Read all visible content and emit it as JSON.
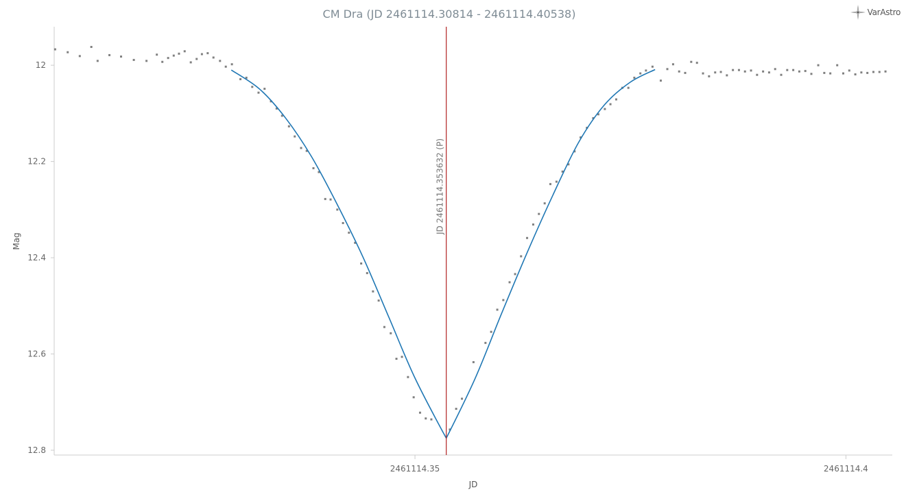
{
  "logo": {
    "text": "VarAstro",
    "icon": "compass-star-icon"
  },
  "chart_data": {
    "type": "scatter",
    "title": "CM Dra (JD 2461114.30814 - 2461114.40538)",
    "xlabel": "JD",
    "ylabel": "Mag",
    "xlim": [
      2461114.30814,
      2461114.40538
    ],
    "ylim": [
      11.92,
      12.81
    ],
    "y_inverted": true,
    "x_ticks": [
      {
        "value": 2461114.35,
        "label": "2461114.35"
      },
      {
        "value": 2461114.4,
        "label": "2461114.4"
      }
    ],
    "y_ticks": [
      {
        "value": 12.0,
        "label": "12"
      },
      {
        "value": 12.2,
        "label": "12.2"
      },
      {
        "value": 12.4,
        "label": "12.4"
      },
      {
        "value": 12.6,
        "label": "12.6"
      },
      {
        "value": 12.8,
        "label": "12.8"
      }
    ],
    "grid": false,
    "marker": {
      "x": 2461114.353632,
      "label": "JD 2461114.353632 (P)",
      "color": "#b22222"
    },
    "colors": {
      "points": "#808080",
      "fit": "#1f77b4",
      "axis": "#cccccc"
    },
    "series": [
      {
        "type": "scatter",
        "points": [
          [
            2461114.30825,
            11.967
          ],
          [
            2461114.30971,
            11.973
          ],
          [
            2461114.31111,
            11.981
          ],
          [
            2461114.31245,
            11.962
          ],
          [
            2461114.31318,
            11.991
          ],
          [
            2461114.31455,
            11.979
          ],
          [
            2461114.3159,
            11.982
          ],
          [
            2461114.31738,
            11.989
          ],
          [
            2461114.31885,
            11.991
          ],
          [
            2461114.32005,
            11.978
          ],
          [
            2461114.32069,
            11.993
          ],
          [
            2461114.32136,
            11.985
          ],
          [
            2461114.32201,
            11.98
          ],
          [
            2461114.32262,
            11.976
          ],
          [
            2461114.32328,
            11.971
          ],
          [
            2461114.32399,
            11.994
          ],
          [
            2461114.32467,
            11.987
          ],
          [
            2461114.32528,
            11.977
          ],
          [
            2461114.32595,
            11.975
          ],
          [
            2461114.32662,
            11.984
          ],
          [
            2461114.32738,
            11.991
          ],
          [
            2461114.32805,
            12.003
          ],
          [
            2461114.32876,
            11.998
          ],
          [
            2461114.32975,
            12.029
          ],
          [
            2461114.33044,
            12.026
          ],
          [
            2461114.33112,
            12.045
          ],
          [
            2461114.33185,
            12.057
          ],
          [
            2461114.33255,
            12.049
          ],
          [
            2461114.33329,
            12.075
          ],
          [
            2461114.33395,
            12.09
          ],
          [
            2461114.33458,
            12.105
          ],
          [
            2461114.33538,
            12.127
          ],
          [
            2461114.33605,
            12.148
          ],
          [
            2461114.33679,
            12.172
          ],
          [
            2461114.33744,
            12.178
          ],
          [
            2461114.33822,
            12.214
          ],
          [
            2461114.33885,
            12.222
          ],
          [
            2461114.33959,
            12.278
          ],
          [
            2461114.34021,
            12.279
          ],
          [
            2461114.34099,
            12.3
          ],
          [
            2461114.34165,
            12.328
          ],
          [
            2461114.34234,
            12.348
          ],
          [
            2461114.34305,
            12.369
          ],
          [
            2461114.34376,
            12.412
          ],
          [
            2461114.34445,
            12.432
          ],
          [
            2461114.34513,
            12.47
          ],
          [
            2461114.34579,
            12.489
          ],
          [
            2461114.34645,
            12.544
          ],
          [
            2461114.34719,
            12.557
          ],
          [
            2461114.34785,
            12.61
          ],
          [
            2461114.34849,
            12.606
          ],
          [
            2461114.34919,
            12.648
          ],
          [
            2461114.34985,
            12.69
          ],
          [
            2461114.35059,
            12.722
          ],
          [
            2461114.35125,
            12.734
          ],
          [
            2461114.3519,
            12.736
          ],
          [
            2461114.35405,
            12.757
          ],
          [
            2461114.35478,
            12.714
          ],
          [
            2461114.35545,
            12.693
          ],
          [
            2461114.35679,
            12.617
          ],
          [
            2461114.35818,
            12.577
          ],
          [
            2461114.35884,
            12.554
          ],
          [
            2461114.35955,
            12.508
          ],
          [
            2461114.36025,
            12.488
          ],
          [
            2461114.36098,
            12.451
          ],
          [
            2461114.36162,
            12.434
          ],
          [
            2461114.36231,
            12.397
          ],
          [
            2461114.36301,
            12.359
          ],
          [
            2461114.36372,
            12.331
          ],
          [
            2461114.36438,
            12.309
          ],
          [
            2461114.36505,
            12.287
          ],
          [
            2461114.36571,
            12.247
          ],
          [
            2461114.36642,
            12.242
          ],
          [
            2461114.36712,
            12.221
          ],
          [
            2461114.36781,
            12.206
          ],
          [
            2461114.36852,
            12.179
          ],
          [
            2461114.36922,
            12.15
          ],
          [
            2461114.36995,
            12.13
          ],
          [
            2461114.37068,
            12.11
          ],
          [
            2461114.37128,
            12.102
          ],
          [
            2461114.37203,
            12.091
          ],
          [
            2461114.37268,
            12.081
          ],
          [
            2461114.37335,
            12.071
          ],
          [
            2461114.37406,
            12.047
          ],
          [
            2461114.37476,
            12.047
          ],
          [
            2461114.37545,
            12.026
          ],
          [
            2461114.37615,
            12.017
          ],
          [
            2461114.3768,
            12.011
          ],
          [
            2461114.37756,
            12.003
          ],
          [
            2461114.37852,
            12.032
          ],
          [
            2461114.37928,
            12.008
          ],
          [
            2461114.37995,
            11.998
          ],
          [
            2461114.38065,
            12.013
          ],
          [
            2461114.38135,
            12.016
          ],
          [
            2461114.38205,
            11.993
          ],
          [
            2461114.38272,
            11.995
          ],
          [
            2461114.38342,
            12.017
          ],
          [
            2461114.38412,
            12.023
          ],
          [
            2461114.38483,
            12.015
          ],
          [
            2461114.38549,
            12.014
          ],
          [
            2461114.38619,
            12.021
          ],
          [
            2461114.38689,
            12.01
          ],
          [
            2461114.38759,
            12.01
          ],
          [
            2461114.38829,
            12.013
          ],
          [
            2461114.38899,
            12.011
          ],
          [
            2461114.38969,
            12.02
          ],
          [
            2461114.39039,
            12.013
          ],
          [
            2461114.39109,
            12.015
          ],
          [
            2461114.39179,
            12.008
          ],
          [
            2461114.39249,
            12.02
          ],
          [
            2461114.39319,
            12.01
          ],
          [
            2461114.39389,
            12.01
          ],
          [
            2461114.39459,
            12.013
          ],
          [
            2461114.39529,
            12.012
          ],
          [
            2461114.39599,
            12.018
          ],
          [
            2461114.39679,
            12.0
          ],
          [
            2461114.39749,
            12.016
          ],
          [
            2461114.39819,
            12.017
          ],
          [
            2461114.39899,
            12.0
          ],
          [
            2461114.39969,
            12.017
          ],
          [
            2461114.40039,
            12.011
          ],
          [
            2461114.40109,
            12.019
          ],
          [
            2461114.40179,
            12.015
          ],
          [
            2461114.40249,
            12.016
          ],
          [
            2461114.40319,
            12.014
          ],
          [
            2461114.40389,
            12.014
          ],
          [
            2461114.40459,
            12.013
          ]
        ]
      },
      {
        "type": "line",
        "points": [
          [
            2461114.32869,
            12.01
          ],
          [
            2461114.332,
            12.05
          ],
          [
            2461114.335,
            12.11
          ],
          [
            2461114.338,
            12.19
          ],
          [
            2461114.341,
            12.29
          ],
          [
            2461114.344,
            12.4
          ],
          [
            2461114.347,
            12.525
          ],
          [
            2461114.35,
            12.65
          ],
          [
            2461114.35363,
            12.775
          ],
          [
            2461114.357,
            12.65
          ],
          [
            2461114.36,
            12.518
          ],
          [
            2461114.363,
            12.39
          ],
          [
            2461114.366,
            12.27
          ],
          [
            2461114.369,
            12.16
          ],
          [
            2461114.372,
            12.082
          ],
          [
            2461114.375,
            12.035
          ],
          [
            2461114.37786,
            12.009
          ]
        ]
      }
    ]
  }
}
